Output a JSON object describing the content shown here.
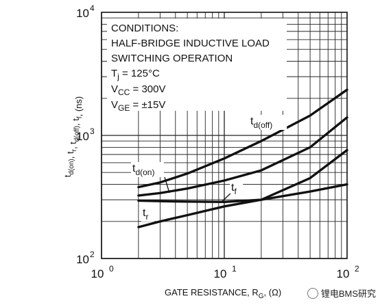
{
  "chart_data": {
    "type": "line",
    "x_scale": "log",
    "y_scale": "log",
    "xlim": [
      1,
      100
    ],
    "ylim": [
      100,
      10000
    ],
    "xlabel": "GATE RESISTANCE, R",
    "xlabel_sub": "G",
    "xlabel_tail": ", (Ω)",
    "ylabel": "t<sub>d(on)</sub>, t<sub>r</sub>, t<sub>d(off)</sub>, t<sub>f</sub>, (ns)",
    "x_ticks": [
      {
        "value": 1,
        "label": "10",
        "exp": "0"
      },
      {
        "value": 10,
        "label": "10",
        "exp": "1"
      },
      {
        "value": 100,
        "label": "10",
        "exp": "2"
      }
    ],
    "y_ticks": [
      {
        "value": 100,
        "label": "10",
        "exp": "2"
      },
      {
        "value": 1000,
        "label": "10",
        "exp": "3"
      },
      {
        "value": 10000,
        "label": "10",
        "exp": "4"
      }
    ],
    "grid": true,
    "conditions": [
      "CONDITIONS:",
      "HALF-BRIDGE INDUCTIVE LOAD",
      "SWITCHING OPERATION"
    ],
    "conditions_params": [
      {
        "sym": "T",
        "sub": "j",
        "val": " = 125°C"
      },
      {
        "sym": "V",
        "sub": "CC",
        "val": " = 300V"
      },
      {
        "sym": "V",
        "sub": "GE",
        "val": " = ±15V"
      }
    ],
    "series": [
      {
        "name": "t",
        "sub": "d(off)",
        "x": [
          2,
          3,
          5,
          10,
          20,
          50,
          100
        ],
        "y": [
          380,
          415,
          490,
          650,
          900,
          1450,
          2350
        ]
      },
      {
        "name": "t",
        "sub": "d(on)",
        "x": [
          2,
          3,
          5,
          10,
          20,
          50,
          100
        ],
        "y": [
          325,
          340,
          370,
          430,
          520,
          800,
          1400
        ]
      },
      {
        "name": "t",
        "sub": "f",
        "x": [
          2,
          3,
          5,
          10,
          20,
          50,
          100
        ],
        "y": [
          295,
          292,
          290,
          288,
          300,
          450,
          760
        ]
      },
      {
        "name": "t",
        "sub": "r",
        "x": [
          2,
          3,
          5,
          10,
          20,
          50,
          100
        ],
        "y": [
          180,
          200,
          225,
          265,
          300,
          350,
          400
        ]
      }
    ]
  },
  "watermark": "锂电BMS研究"
}
